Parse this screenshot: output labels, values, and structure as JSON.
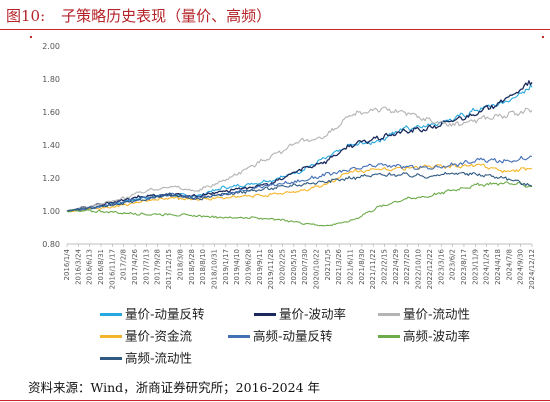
{
  "figure": {
    "number": "图10:",
    "title": "子策略历史表现（量价、高频）",
    "source": "资料来源：Wind，浙商证券研究所；2016-2024 年"
  },
  "colors": {
    "accent_red": "#c9252c",
    "title_red": "#b5242a"
  },
  "chart_data": {
    "type": "line",
    "ylim": [
      0.8,
      2.0
    ],
    "yticks": [
      "0.80",
      "1.00",
      "1.20",
      "1.40",
      "1.60",
      "1.80",
      "2.00"
    ],
    "grid": false,
    "legend_position": "bottom",
    "x_ticks": [
      "2016/1/4",
      "2016/3/24",
      "2016/6/13",
      "2016/8/31",
      "2016/11/17",
      "2017/2/8",
      "2017/4/26",
      "2017/7/13",
      "2017/9/28",
      "2017/12/15",
      "2018/3/8",
      "2018/5/28",
      "2018/8/10",
      "2018/10/31",
      "2019/1/17",
      "2019/4/10",
      "2019/6/28",
      "2019/9/11",
      "2019/11/28",
      "2020/2/25",
      "2020/5/15",
      "2020/7/30",
      "2020/10/22",
      "2021/1/5",
      "2021/3/26",
      "2021/6/11",
      "2021/8/30",
      "2021/11/22",
      "2022/2/15",
      "2022/4/29",
      "2022/7/20",
      "2022/10/10",
      "2022/12/22",
      "2023/3/16",
      "2023/6/2",
      "2023/8/17",
      "2023/11/9",
      "2024/1/24",
      "2024/4/18",
      "2024/7/8",
      "2024/9/30",
      "2024/12/12"
    ],
    "x": [
      "2016-01",
      "2016-07",
      "2017-01",
      "2017-07",
      "2018-01",
      "2018-07",
      "2019-01",
      "2019-07",
      "2020-01",
      "2020-07",
      "2021-01",
      "2021-07",
      "2022-01",
      "2022-07",
      "2023-01",
      "2023-07",
      "2024-01",
      "2024-07",
      "2024-12"
    ],
    "series": [
      {
        "name": "量价-动量反转",
        "color": "#29a8df",
        "values": [
          1.0,
          1.02,
          1.05,
          1.08,
          1.1,
          1.09,
          1.14,
          1.16,
          1.19,
          1.24,
          1.32,
          1.4,
          1.42,
          1.5,
          1.52,
          1.56,
          1.62,
          1.66,
          1.75
        ]
      },
      {
        "name": "量价-波动率",
        "color": "#1a2a5c",
        "values": [
          1.0,
          1.03,
          1.06,
          1.09,
          1.1,
          1.09,
          1.12,
          1.14,
          1.17,
          1.25,
          1.3,
          1.4,
          1.44,
          1.48,
          1.5,
          1.55,
          1.6,
          1.68,
          1.78
        ]
      },
      {
        "name": "量价-流动性",
        "color": "#b4b4b4",
        "values": [
          1.0,
          1.03,
          1.07,
          1.12,
          1.15,
          1.12,
          1.18,
          1.26,
          1.34,
          1.42,
          1.45,
          1.58,
          1.62,
          1.6,
          1.55,
          1.52,
          1.56,
          1.58,
          1.61
        ]
      },
      {
        "name": "量价-资金流",
        "color": "#f5b52a",
        "values": [
          1.0,
          1.01,
          1.03,
          1.06,
          1.08,
          1.07,
          1.08,
          1.09,
          1.1,
          1.12,
          1.16,
          1.24,
          1.25,
          1.26,
          1.27,
          1.27,
          1.28,
          1.24,
          1.26
        ]
      },
      {
        "name": "高频-动量反转",
        "color": "#4470b6",
        "values": [
          1.0,
          1.02,
          1.05,
          1.08,
          1.1,
          1.08,
          1.1,
          1.13,
          1.16,
          1.18,
          1.22,
          1.25,
          1.28,
          1.27,
          1.26,
          1.28,
          1.31,
          1.3,
          1.33
        ]
      },
      {
        "name": "高频-波动率",
        "color": "#6cab4a",
        "values": [
          1.0,
          1.0,
          0.99,
          0.98,
          0.98,
          0.97,
          0.96,
          0.96,
          0.95,
          0.93,
          0.91,
          0.94,
          1.02,
          1.07,
          1.09,
          1.13,
          1.16,
          1.17,
          1.15
        ]
      },
      {
        "name": "高频-流动性",
        "color": "#305a82",
        "values": [
          1.0,
          1.02,
          1.04,
          1.07,
          1.1,
          1.07,
          1.1,
          1.12,
          1.14,
          1.16,
          1.18,
          1.2,
          1.22,
          1.22,
          1.21,
          1.23,
          1.22,
          1.2,
          1.15
        ]
      }
    ]
  }
}
